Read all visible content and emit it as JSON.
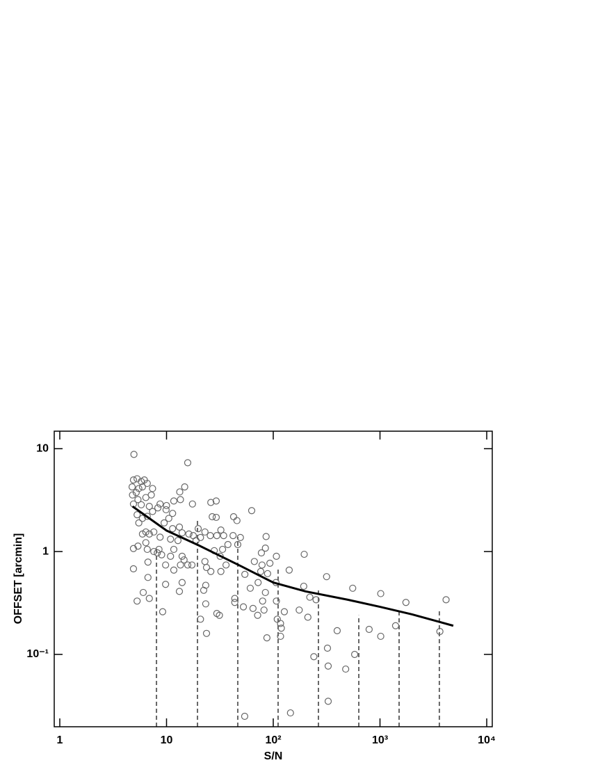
{
  "chart_data": {
    "type": "scatter",
    "xlabel": "S/N",
    "ylabel": "OFFSET [arcmin]",
    "xscale": "log",
    "yscale": "log",
    "xlim": [
      0.887,
      11270
    ],
    "ylim": [
      0.0198,
      14.8
    ],
    "xticks": [
      1,
      10,
      {
        "value": 100,
        "label": "10²"
      },
      {
        "value": 1000,
        "label": "10³"
      },
      {
        "value": 10000,
        "label": "10⁴"
      }
    ],
    "yticks": [
      {
        "value": 0.1,
        "label": "10⁻¹"
      },
      1,
      10
    ],
    "scatter": {
      "color": "#666666",
      "x": [
        4.95,
        4.9,
        5.3,
        4.76,
        5.8,
        6.2,
        6.6,
        4.8,
        5.2,
        5.5,
        5.95,
        5.4,
        6.4,
        7.2,
        7.4,
        4.9,
        5.8,
        6.9,
        5.3,
        5.95,
        6.6,
        7.4,
        8.3,
        5.5,
        6.4,
        6.9,
        7.6,
        5.95,
        6.4,
        6.6,
        7.6,
        8.2,
        9.0,
        4.9,
        5.4,
        8.5,
        8.7,
        6.7,
        4.9,
        6.7,
        6.05,
        5.3,
        6.9,
        9.2,
        8.7,
        10,
        9.9,
        9.5,
        10.5,
        11.4,
        11.7,
        13.3,
        14.8,
        15.8,
        13.5,
        17.5,
        11.4,
        13.2,
        14,
        16.2,
        19.8,
        17.8,
        18.9,
        20.8,
        10.9,
        11.7,
        10.9,
        9.8,
        11.7,
        12.8,
        14,
        14.6,
        15.8,
        13.5,
        17.3,
        14,
        9.8,
        13.2,
        22.3,
        23.3,
        20.8,
        23.7,
        23.3,
        26.8,
        26,
        29.2,
        29.2,
        22.9,
        25.7,
        32.3,
        34.3,
        29.6,
        37.6,
        33.5,
        28,
        31.8,
        22.9,
        23.7,
        26,
        32.3,
        36.1,
        29.6,
        31.3,
        42.5,
        45.7,
        42,
        49.2,
        46.5,
        43.6,
        43.6,
        52.5,
        54.2,
        62.8,
        60.9,
        66.5,
        72.1,
        64.6,
        71.4,
        77.4,
        78.5,
        76.3,
        79.5,
        81.9,
        84.4,
        85.7,
        84.4,
        88.5,
        93,
        87.2,
        54,
        107,
        106,
        107,
        109,
        117,
        119,
        117,
        127,
        141,
        145,
        175,
        193,
        195,
        211,
        220,
        240,
        252,
        316,
        322,
        327,
        327,
        397,
        477,
        555,
        579,
        791,
        1016,
        1016,
        1400,
        1750,
        3640,
        4160
      ],
      "values": [
        8.8,
        4.97,
        5.1,
        4.25,
        4.8,
        4.97,
        4.6,
        3.55,
        3.75,
        4.1,
        4.25,
        3.2,
        3.35,
        3.55,
        4.1,
        2.9,
        2.85,
        2.75,
        2.28,
        2.1,
        2.2,
        2.45,
        2.66,
        1.9,
        1.55,
        1.48,
        1.55,
        1.48,
        1.22,
        1.05,
        1.0,
        0.97,
        0.93,
        1.07,
        1.13,
        1.05,
        1.38,
        0.79,
        0.68,
        0.56,
        0.4,
        0.33,
        0.35,
        0.26,
        2.9,
        2.8,
        2.55,
        1.9,
        2.1,
        2.35,
        3.1,
        3.8,
        4.25,
        7.3,
        3.2,
        2.9,
        1.67,
        1.73,
        1.52,
        1.48,
        1.67,
        1.43,
        1.28,
        1.37,
        1.32,
        1.05,
        0.9,
        0.74,
        0.66,
        1.28,
        0.9,
        0.83,
        0.74,
        0.74,
        0.74,
        0.5,
        0.48,
        0.41,
        0.42,
        0.47,
        0.22,
        0.16,
        0.31,
        2.18,
        3.0,
        3.1,
        2.15,
        1.55,
        1.43,
        1.62,
        1.43,
        1.43,
        1.17,
        1.05,
        1.02,
        0.9,
        0.8,
        0.7,
        0.64,
        0.64,
        0.74,
        0.25,
        0.24,
        2.18,
        2.0,
        1.43,
        1.37,
        1.17,
        0.35,
        0.32,
        0.29,
        0.6,
        2.5,
        0.44,
        0.8,
        0.5,
        0.28,
        0.24,
        0.97,
        0.74,
        0.64,
        0.33,
        0.27,
        0.4,
        1.4,
        1.08,
        0.61,
        0.77,
        0.145,
        0.025,
        0.9,
        0.5,
        0.33,
        0.22,
        0.2,
        0.18,
        0.15,
        0.26,
        0.66,
        0.027,
        0.27,
        0.46,
        0.94,
        0.23,
        0.36,
        0.095,
        0.34,
        0.57,
        0.115,
        0.077,
        0.035,
        0.17,
        0.072,
        0.44,
        0.1,
        0.175,
        0.39,
        0.15,
        0.19,
        0.32,
        0.167,
        0.34
      ]
    },
    "fit": {
      "color": "#000000",
      "x": [
        4.8,
        10,
        20,
        50,
        100,
        200,
        500,
        1000,
        2000,
        4860
      ],
      "values": [
        2.75,
        1.6,
        1.15,
        0.72,
        0.5,
        0.41,
        0.34,
        0.29,
        0.245,
        0.19
      ]
    },
    "limits": {
      "color": "#666666",
      "x": [
        8.05,
        19.5,
        46.5,
        111,
        265,
        633,
        1510,
        3600
      ],
      "values": [
        1.13,
        2.0,
        1.39,
        0.71,
        0.42,
        0.24,
        0.28,
        0.27
      ]
    }
  }
}
